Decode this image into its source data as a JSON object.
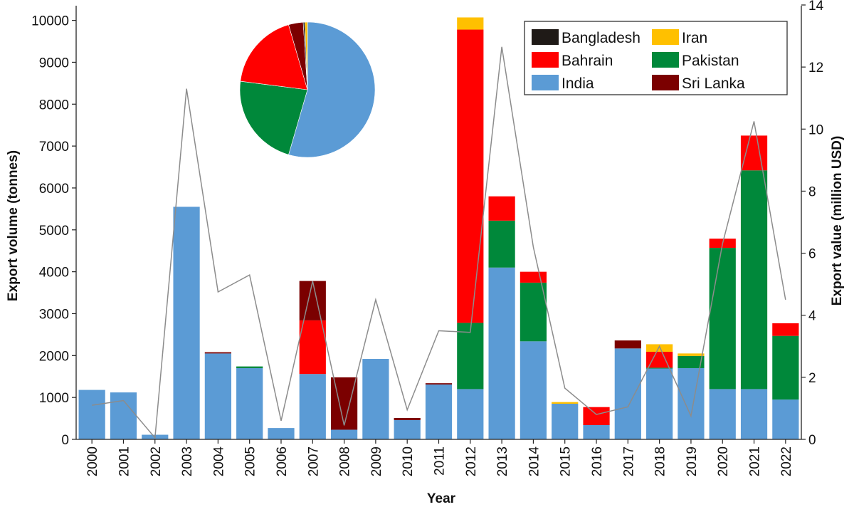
{
  "chart_data": {
    "type": "bar",
    "stacked": true,
    "xlabel": "Year",
    "ylabel": "Export volume (tonnes)",
    "y2label": "Export value (million USD)",
    "ylim": [
      0,
      10000
    ],
    "y2lim": [
      0,
      14
    ],
    "yticks": [
      "0",
      "1000",
      "2000",
      "3000",
      "4000",
      "5000",
      "6000",
      "7000",
      "8000",
      "9000",
      "10000"
    ],
    "y2ticks": [
      "0",
      "2",
      "4",
      "6",
      "8",
      "10",
      "12",
      "14"
    ],
    "categories": [
      "2000",
      "2001",
      "2002",
      "2003",
      "2004",
      "2005",
      "2006",
      "2007",
      "2008",
      "2009",
      "2010",
      "2011",
      "2012",
      "2013",
      "2014",
      "2015",
      "2016",
      "2017",
      "2018",
      "2019",
      "2020",
      "2021",
      "2022"
    ],
    "series": [
      {
        "name": "India",
        "color": "#5b9bd5",
        "values": [
          1180,
          1120,
          110,
          5550,
          2050,
          1700,
          270,
          1560,
          230,
          1920,
          460,
          1310,
          1200,
          4100,
          2340,
          850,
          340,
          2170,
          1690,
          1700,
          1200,
          1200,
          950
        ]
      },
      {
        "name": "Pakistan",
        "color": "#00883a",
        "values": [
          0,
          0,
          0,
          0,
          0,
          40,
          0,
          0,
          0,
          0,
          0,
          0,
          1580,
          1120,
          1400,
          0,
          0,
          0,
          20,
          290,
          3370,
          5220,
          1520
        ]
      },
      {
        "name": "Bahrain",
        "color": "#ff0000",
        "values": [
          0,
          0,
          0,
          0,
          0,
          0,
          0,
          1280,
          0,
          0,
          0,
          0,
          7000,
          580,
          260,
          0,
          430,
          0,
          380,
          0,
          220,
          830,
          300
        ]
      },
      {
        "name": "Sri Lanka",
        "color": "#7b0000",
        "values": [
          0,
          0,
          0,
          0,
          30,
          0,
          0,
          940,
          1250,
          0,
          50,
          30,
          0,
          0,
          0,
          0,
          0,
          190,
          0,
          0,
          0,
          0,
          0
        ]
      },
      {
        "name": "Bangladesh",
        "color": "#1f1a17",
        "values": [
          0,
          0,
          0,
          0,
          0,
          0,
          0,
          0,
          0,
          0,
          0,
          0,
          0,
          0,
          0,
          0,
          0,
          0,
          0,
          0,
          0,
          0,
          0
        ]
      },
      {
        "name": "Iran",
        "color": "#ffc000",
        "values": [
          0,
          0,
          0,
          0,
          0,
          0,
          0,
          0,
          0,
          0,
          0,
          0,
          290,
          0,
          0,
          40,
          0,
          0,
          180,
          60,
          0,
          0,
          0
        ]
      }
    ],
    "line_series": {
      "axis": "y2",
      "color": "#8c8c8c",
      "values": [
        1.1,
        1.25,
        0.05,
        11.3,
        4.75,
        5.3,
        0.6,
        5.1,
        0.45,
        4.5,
        0.95,
        3.5,
        3.45,
        12.65,
        6.2,
        1.65,
        0.8,
        1.05,
        3.0,
        0.75,
        6.3,
        10.25,
        4.5
      ]
    },
    "pie": {
      "slices": [
        {
          "name": "India",
          "color": "#5b9bd5",
          "value": 54.5
        },
        {
          "name": "Pakistan",
          "color": "#00883a",
          "value": 22.5
        },
        {
          "name": "Bahrain",
          "color": "#ff0000",
          "value": 18.5
        },
        {
          "name": "Sri Lanka",
          "color": "#7b0000",
          "value": 3.5
        },
        {
          "name": "Bangladesh",
          "color": "#1f1a17",
          "value": 0.4
        },
        {
          "name": "Iran",
          "color": "#ffc000",
          "value": 0.6
        }
      ]
    },
    "legend": {
      "placement": "top-right",
      "entries": [
        {
          "name": "Bangladesh",
          "color": "#1f1a17"
        },
        {
          "name": "Iran",
          "color": "#ffc000"
        },
        {
          "name": "Bahrain",
          "color": "#ff0000"
        },
        {
          "name": "Pakistan",
          "color": "#00883a"
        },
        {
          "name": "India",
          "color": "#5b9bd5"
        },
        {
          "name": "Sri Lanka",
          "color": "#7b0000"
        }
      ]
    },
    "grid": false
  }
}
